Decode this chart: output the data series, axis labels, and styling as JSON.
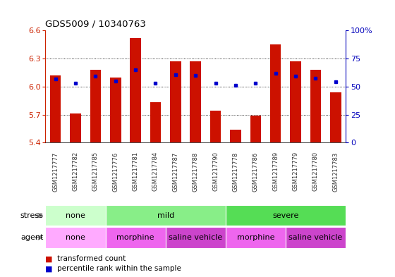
{
  "title": "GDS5009 / 10340763",
  "samples": [
    "GSM1217777",
    "GSM1217782",
    "GSM1217785",
    "GSM1217776",
    "GSM1217781",
    "GSM1217784",
    "GSM1217787",
    "GSM1217788",
    "GSM1217790",
    "GSM1217778",
    "GSM1217786",
    "GSM1217789",
    "GSM1217779",
    "GSM1217780",
    "GSM1217783"
  ],
  "bar_tops": [
    6.12,
    5.71,
    6.18,
    6.1,
    6.52,
    5.83,
    6.27,
    6.27,
    5.74,
    5.54,
    5.69,
    6.45,
    6.27,
    6.18,
    5.94
  ],
  "blue_y": [
    6.08,
    6.04,
    6.11,
    6.06,
    6.18,
    6.04,
    6.13,
    6.12,
    6.04,
    6.01,
    6.04,
    6.14,
    6.11,
    6.09,
    6.05
  ],
  "bar_bottom": 5.4,
  "ylim": [
    5.4,
    6.6
  ],
  "yticks_left": [
    5.4,
    5.7,
    6.0,
    6.3,
    6.6
  ],
  "yticks_right_pct": [
    0,
    25,
    50,
    75,
    100
  ],
  "yticks_right_labels": [
    "0",
    "25",
    "50",
    "75",
    "100%"
  ],
  "bar_color": "#CC1100",
  "blue_color": "#0000CC",
  "tick_bg_color": "#CCCCCC",
  "stress_groups": [
    {
      "label": "none",
      "cols": [
        0,
        3
      ],
      "color": "#CCFFCC"
    },
    {
      "label": "mild",
      "cols": [
        3,
        9
      ],
      "color": "#88EE88"
    },
    {
      "label": "severe",
      "cols": [
        9,
        15
      ],
      "color": "#55DD55"
    }
  ],
  "agent_groups": [
    {
      "label": "none",
      "cols": [
        0,
        3
      ],
      "color": "#FFAAFF"
    },
    {
      "label": "morphine",
      "cols": [
        3,
        6
      ],
      "color": "#EE66EE"
    },
    {
      "label": "saline vehicle",
      "cols": [
        6,
        9
      ],
      "color": "#CC44CC"
    },
    {
      "label": "morphine",
      "cols": [
        9,
        12
      ],
      "color": "#EE66EE"
    },
    {
      "label": "saline vehicle",
      "cols": [
        12,
        15
      ],
      "color": "#CC44CC"
    }
  ],
  "left_axis_color": "#CC2200",
  "right_axis_color": "#0000BB",
  "tick_label_color": "#333333",
  "legend": [
    {
      "label": "transformed count",
      "color": "#CC1100"
    },
    {
      "label": "percentile rank within the sample",
      "color": "#0000CC"
    }
  ]
}
